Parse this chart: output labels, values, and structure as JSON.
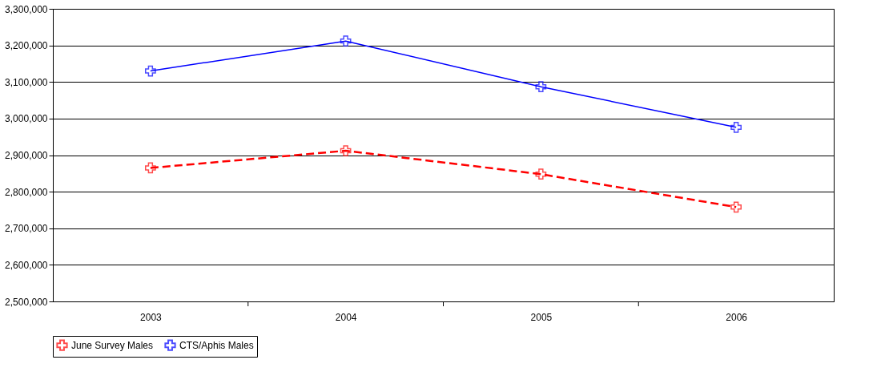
{
  "chart_data": {
    "type": "line",
    "categories": [
      "2003",
      "2004",
      "2005",
      "2006"
    ],
    "series": [
      {
        "name": "June Survey Males",
        "color": "#ff0000",
        "values": [
          2865000,
          2912000,
          2848000,
          2758000
        ],
        "line_style": "dashed",
        "marker": "cross"
      },
      {
        "name": "CTS/Aphis Males",
        "color": "#0000ff",
        "values": [
          3130000,
          3212000,
          3087000,
          2976000
        ],
        "line_style": "solid",
        "marker": "cross"
      }
    ],
    "ylim": [
      2500000,
      3300000
    ],
    "yticks": [
      {
        "value": 2500000,
        "label": "2,500,000"
      },
      {
        "value": 2600000,
        "label": "2,600,000"
      },
      {
        "value": 2700000,
        "label": "2,700,000"
      },
      {
        "value": 2800000,
        "label": "2,800,000"
      },
      {
        "value": 2900000,
        "label": "2,900,000"
      },
      {
        "value": 3000000,
        "label": "3,000,000"
      },
      {
        "value": 3100000,
        "label": "3,100,000"
      },
      {
        "value": 3200000,
        "label": "3,200,000"
      },
      {
        "value": 3300000,
        "label": "3,300,000"
      }
    ],
    "grid": "y",
    "legend": "bottom"
  }
}
